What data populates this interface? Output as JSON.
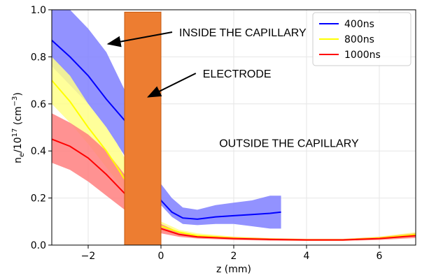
{
  "chart_data": {
    "type": "line",
    "xlabel": "z (mm)",
    "ylabel": "n_e/10^17 (cm^-3)",
    "ylabel_parts": {
      "main": "n",
      "sub": "e",
      "mid": "/10",
      "sup1": "17",
      "unit_open": " (cm",
      "sup2": "−3",
      "unit_close": ")"
    },
    "xlim": [
      -3,
      7
    ],
    "ylim": [
      0,
      1
    ],
    "xticks": [
      -2,
      0,
      2,
      4,
      6
    ],
    "xtick_labels": [
      "−2",
      "0",
      "2",
      "4",
      "6"
    ],
    "yticks": [
      0,
      0.2,
      0.4,
      0.6,
      0.8,
      1.0
    ],
    "ytick_labels": [
      "0.0",
      "0.2",
      "0.4",
      "0.6",
      "0.8",
      "1.0"
    ],
    "grid": true,
    "legend_position": "top-right",
    "series": [
      {
        "name": "400ns",
        "color": "#0000ff",
        "band_color": "#7f7fff",
        "x": [
          -3.0,
          -2.5,
          -2.0,
          -1.5,
          -1.0,
          -0.8,
          -0.6,
          -0.4,
          -0.2,
          0.0,
          0.3,
          0.6,
          1.0,
          1.5,
          2.0,
          2.5,
          3.0,
          3.3
        ],
        "y": [
          0.87,
          0.8,
          0.72,
          0.62,
          0.53,
          0.48,
          0.42,
          0.36,
          0.3,
          0.19,
          0.14,
          0.115,
          0.11,
          0.12,
          0.125,
          0.13,
          0.135,
          0.14
        ],
        "lower": [
          0.76,
          0.68,
          0.6,
          0.5,
          0.38,
          0.33,
          0.28,
          0.24,
          0.22,
          0.17,
          0.12,
          0.09,
          0.085,
          0.09,
          0.09,
          0.08,
          0.07,
          0.07
        ],
        "upper": [
          1.0,
          1.0,
          0.92,
          0.82,
          0.66,
          0.6,
          0.52,
          0.45,
          0.38,
          0.26,
          0.2,
          0.16,
          0.15,
          0.17,
          0.18,
          0.19,
          0.21,
          0.21
        ]
      },
      {
        "name": "800ns",
        "color": "#ffff00",
        "band_color": "#ffff88",
        "x": [
          -3.0,
          -2.5,
          -2.0,
          -1.5,
          -1.2,
          -1.0,
          -0.5,
          0.0,
          0.5,
          1.0,
          2.0,
          3.0,
          4.0,
          5.0,
          6.0,
          7.0
        ],
        "y": [
          0.7,
          0.61,
          0.5,
          0.4,
          0.33,
          0.28,
          0.17,
          0.08,
          0.055,
          0.04,
          0.03,
          0.025,
          0.022,
          0.022,
          0.03,
          0.045
        ],
        "lower": [
          0.6,
          0.52,
          0.43,
          0.33,
          0.27,
          0.23,
          0.12,
          0.06,
          0.045,
          0.032,
          0.025,
          0.02,
          0.018,
          0.018,
          0.024,
          0.035
        ],
        "upper": [
          0.8,
          0.72,
          0.6,
          0.5,
          0.43,
          0.37,
          0.22,
          0.1,
          0.065,
          0.05,
          0.036,
          0.03,
          0.027,
          0.027,
          0.036,
          0.055
        ]
      },
      {
        "name": "1000ns",
        "color": "#ff0000",
        "band_color": "#ff7f7f",
        "x": [
          -3.0,
          -2.5,
          -2.0,
          -1.5,
          -1.0,
          -0.5,
          0.0,
          0.5,
          1.0,
          2.0,
          3.0,
          4.0,
          5.0,
          6.0,
          7.0
        ],
        "y": [
          0.45,
          0.42,
          0.37,
          0.3,
          0.22,
          0.14,
          0.07,
          0.045,
          0.035,
          0.028,
          0.024,
          0.022,
          0.022,
          0.028,
          0.04
        ],
        "lower": [
          0.35,
          0.32,
          0.27,
          0.21,
          0.15,
          0.09,
          0.05,
          0.035,
          0.028,
          0.022,
          0.019,
          0.018,
          0.018,
          0.022,
          0.03
        ],
        "upper": [
          0.56,
          0.52,
          0.47,
          0.4,
          0.3,
          0.19,
          0.09,
          0.055,
          0.042,
          0.034,
          0.029,
          0.026,
          0.026,
          0.034,
          0.05
        ]
      }
    ],
    "electrode": {
      "x0": -1.0,
      "x1": 0.0,
      "y0": 0.0,
      "y1": 0.99,
      "color": "#ed7d31",
      "edge_color": "#c55a11"
    },
    "annotations": [
      {
        "text": "INSIDE THE CAPILLARY",
        "x": 0.5,
        "y": 0.905,
        "arrow_to": [
          -1.45,
          0.855
        ]
      },
      {
        "text": "ELECTRODE",
        "x": 1.15,
        "y": 0.73,
        "arrow_to": [
          -0.35,
          0.63
        ]
      },
      {
        "text": "OUTSIDE THE CAPILLARY",
        "x": 1.6,
        "y": 0.435
      }
    ]
  }
}
